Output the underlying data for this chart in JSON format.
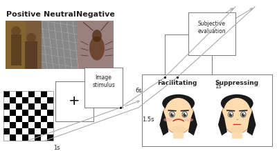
{
  "bg_color": "#ffffff",
  "emotion_labels": [
    "Positive",
    "Neutral",
    "Negative"
  ],
  "emotion_label_fontsize": 8,
  "line_color": "#aaaaaa",
  "box_edge_color": "#777777",
  "text_color": "#222222",
  "label_1s_a": "1s",
  "label_1s_b": "1s",
  "label_15s": "1.5s",
  "label_6s": "6s",
  "pos_img_colors": [
    "#7a5020",
    "#6a6060",
    "#8a6a5a"
  ],
  "face_skin": "#FDDDB0",
  "face_skin_dark": "#F4C090",
  "hair_color": "#1a1a1a",
  "cheek_color": "#F8A0A0",
  "lip_color": "#E05050"
}
